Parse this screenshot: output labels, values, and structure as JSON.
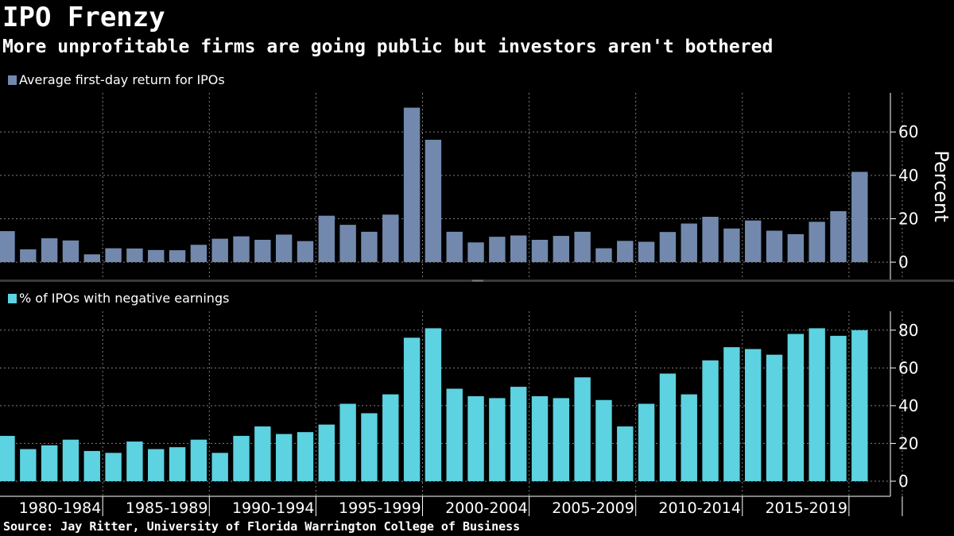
{
  "header": {
    "title": "IPO Frenzy",
    "subtitle": "More unprofitable firms are going public but investors aren't bothered"
  },
  "source": "Source: Jay Ritter, University of Florida Warrington College of Business",
  "colors": {
    "background": "#000000",
    "grid": "#7f7f7f",
    "axis": "#ffffff",
    "text": "#ffffff",
    "divider": "#3a3a3a"
  },
  "chart_data": [
    {
      "type": "bar",
      "legend": "Average first-day return for IPOs",
      "ylabel": "Percent",
      "color": "#7289ad",
      "ylim": [
        -8,
        78
      ],
      "yticks": [
        0,
        20,
        40,
        60
      ],
      "x": [
        1980,
        1981,
        1982,
        1983,
        1984,
        1985,
        1986,
        1987,
        1988,
        1989,
        1990,
        1991,
        1992,
        1993,
        1994,
        1995,
        1996,
        1997,
        1998,
        1999,
        2000,
        2001,
        2002,
        2003,
        2004,
        2005,
        2006,
        2007,
        2008,
        2009,
        2010,
        2011,
        2012,
        2013,
        2014,
        2015,
        2016,
        2017,
        2018,
        2019,
        2020
      ],
      "values": [
        14.3,
        5.9,
        11.0,
        10.0,
        3.6,
        6.4,
        6.3,
        5.6,
        5.5,
        8.0,
        10.8,
        11.9,
        10.3,
        12.7,
        9.7,
        21.4,
        17.2,
        14.0,
        21.9,
        71.2,
        56.4,
        14.0,
        9.1,
        11.7,
        12.3,
        10.3,
        12.1,
        14.0,
        6.4,
        9.8,
        9.4,
        13.9,
        17.8,
        20.9,
        15.5,
        19.2,
        14.5,
        12.9,
        18.6,
        23.5,
        41.6
      ]
    },
    {
      "type": "bar",
      "legend": "% of IPOs with negative earnings",
      "color": "#5dd2e0",
      "ylim": [
        -8,
        90
      ],
      "yticks": [
        0,
        20,
        40,
        60,
        80
      ],
      "x": [
        1980,
        1981,
        1982,
        1983,
        1984,
        1985,
        1986,
        1987,
        1988,
        1989,
        1990,
        1991,
        1992,
        1993,
        1994,
        1995,
        1996,
        1997,
        1998,
        1999,
        2000,
        2001,
        2002,
        2003,
        2004,
        2005,
        2006,
        2007,
        2008,
        2009,
        2010,
        2011,
        2012,
        2013,
        2014,
        2015,
        2016,
        2017,
        2018,
        2019,
        2020
      ],
      "values": [
        24,
        17,
        19,
        22,
        16,
        15,
        21,
        17,
        18,
        22,
        15,
        24,
        29,
        25,
        26,
        30,
        41,
        36,
        46,
        76,
        81,
        49,
        45,
        44,
        50,
        45,
        44,
        55,
        43,
        29,
        41,
        57,
        46,
        64,
        71,
        70,
        67,
        78,
        81,
        77,
        80
      ]
    }
  ],
  "x_axis": {
    "labels": [
      "1980-1984",
      "1985-1989",
      "1990-1994",
      "1995-1999",
      "2000-2004",
      "2005-2009",
      "2010-2014",
      "2015-2019"
    ],
    "label_years": [
      1982,
      1987,
      1992,
      1997,
      2002,
      2007,
      2012,
      2017
    ],
    "gridline_years": [
      1984,
      1989,
      1994,
      1999,
      2004,
      2009,
      2014,
      2019,
      2021.5
    ]
  }
}
